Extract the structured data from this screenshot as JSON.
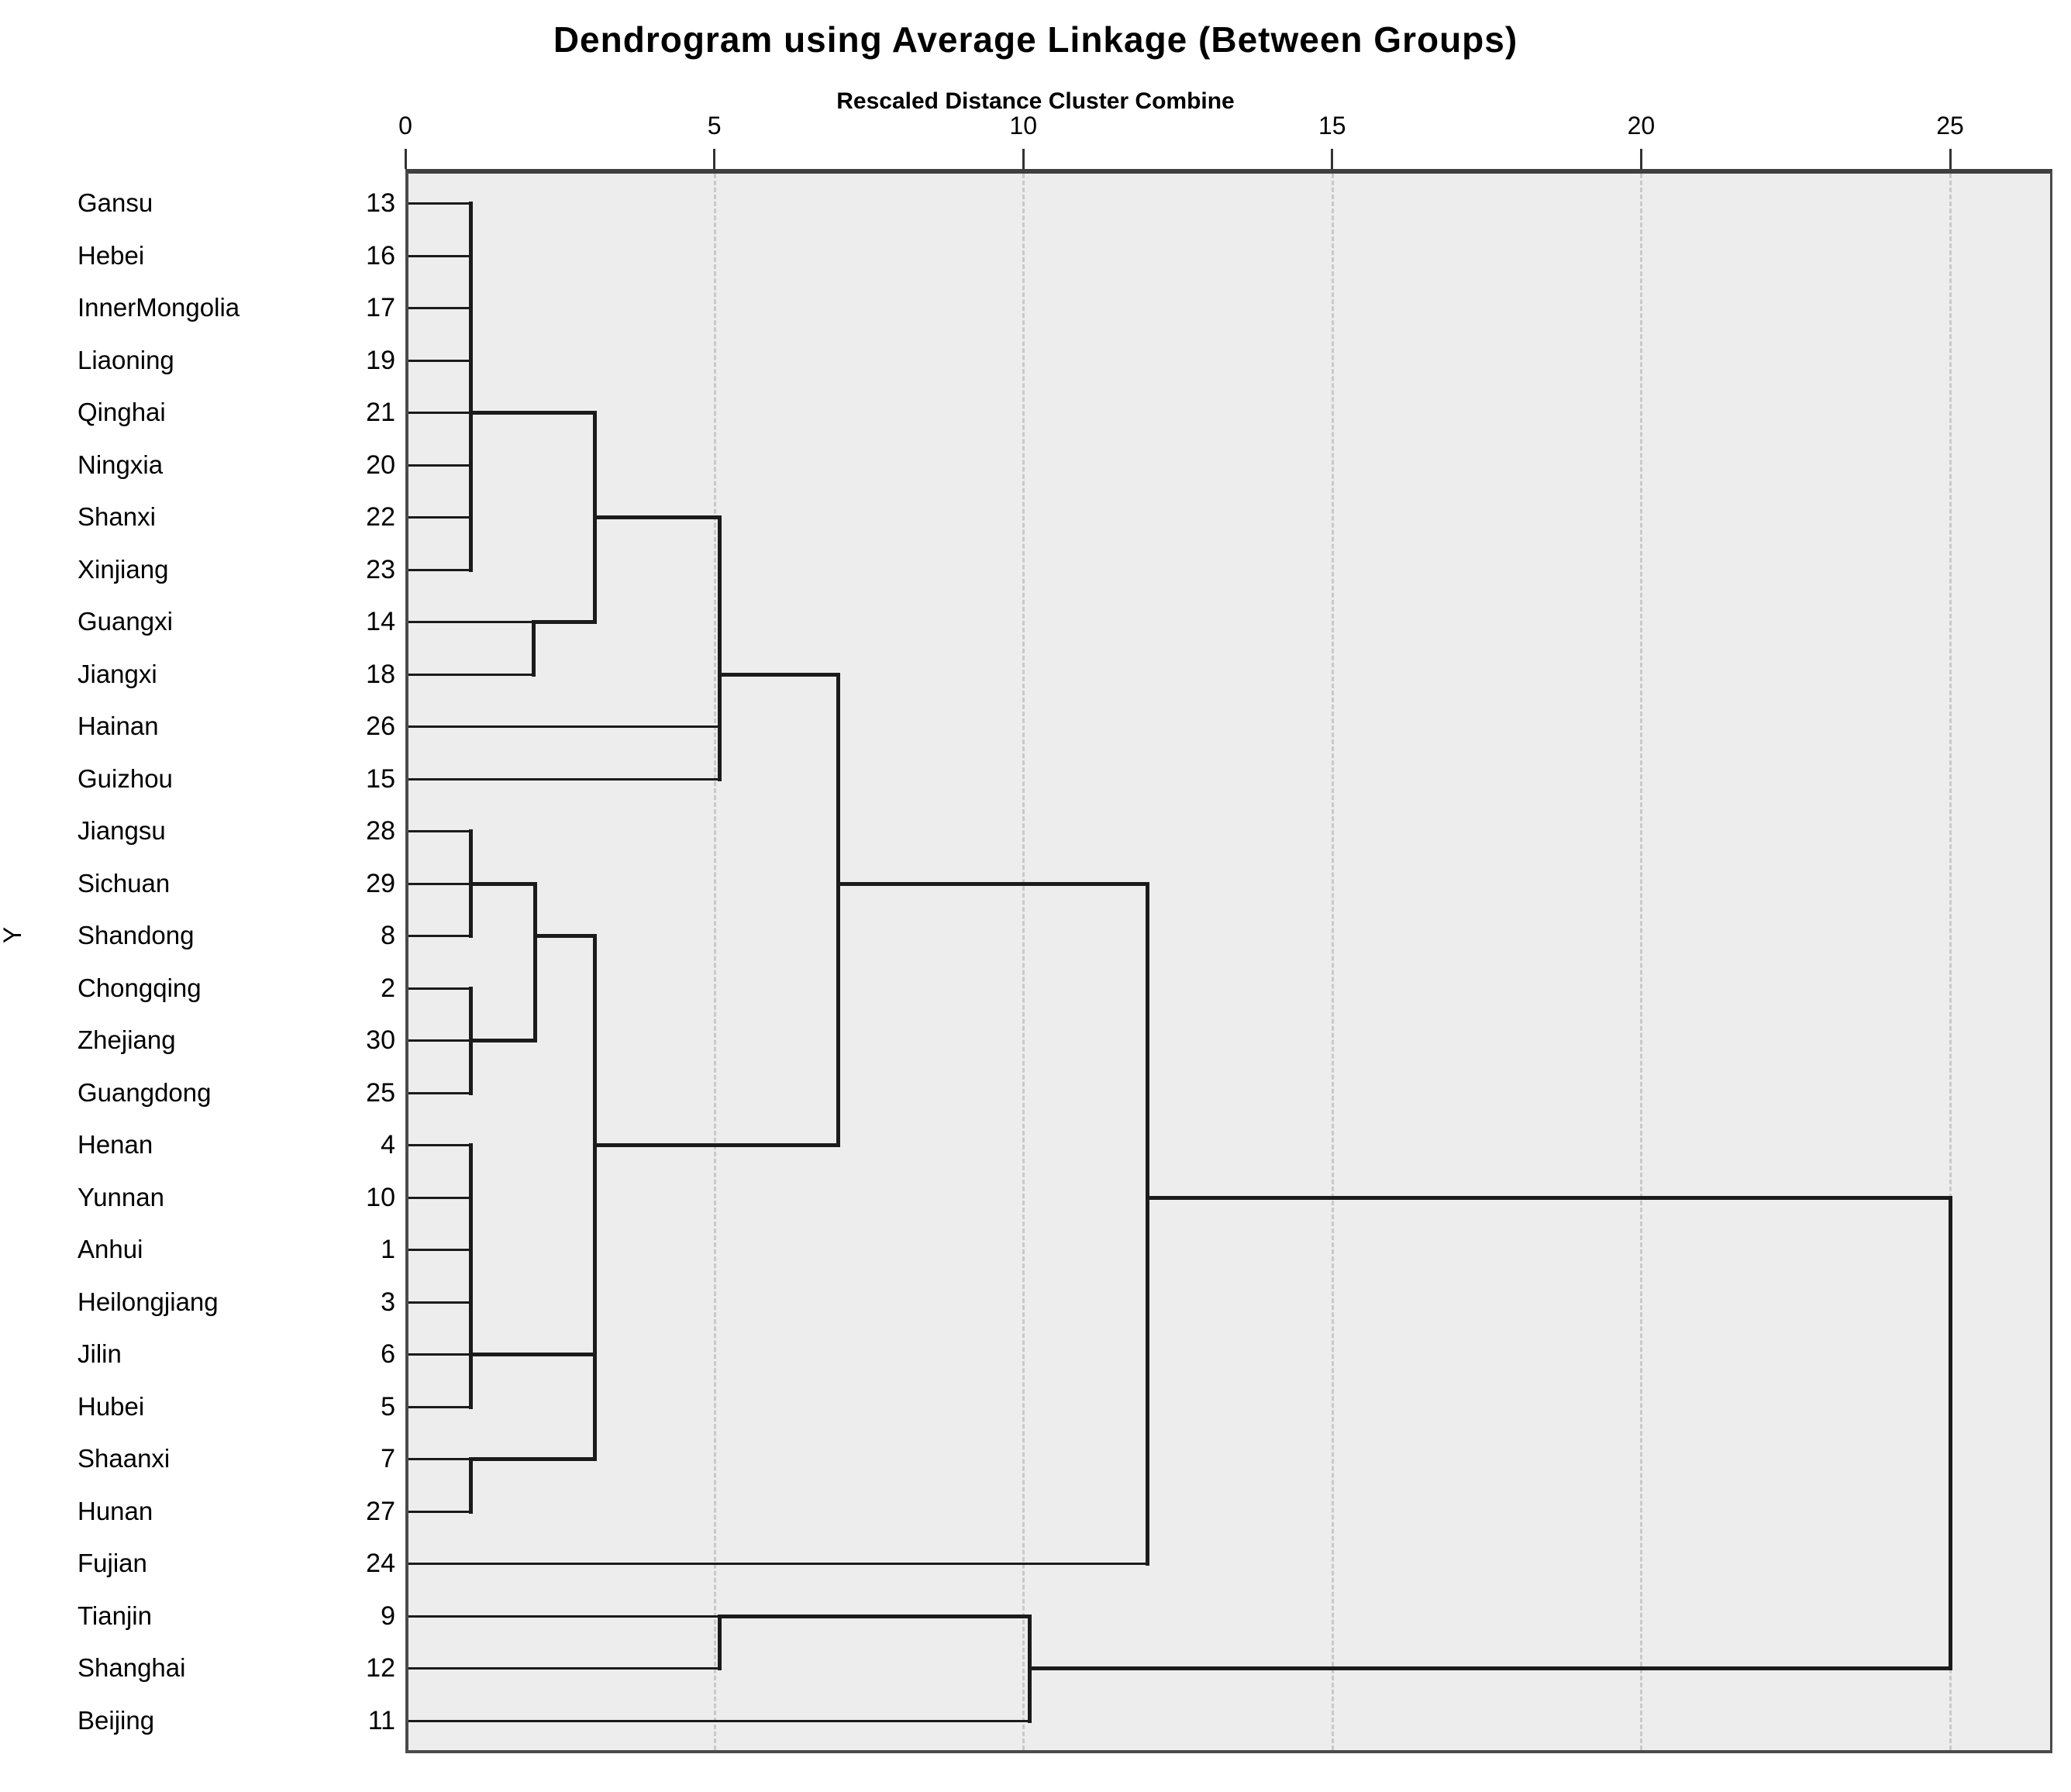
{
  "chart_data": {
    "type": "dendrogram",
    "title": "Dendrogram using Average Linkage (Between Groups)",
    "subtitle": "Rescaled Distance Cluster Combine",
    "y_label": "Y",
    "x_axis": {
      "min": 0,
      "max": 25,
      "ticks": [
        0,
        5,
        10,
        15,
        20,
        25
      ],
      "gridlines": [
        5,
        10,
        15,
        20,
        25
      ]
    },
    "colors": {
      "plot_background": "#ededed",
      "branch": "#1b1b1b",
      "gridline": "#c9c9c9",
      "frame": "#3f3f3f"
    },
    "leaves": [
      {
        "label": "Gansu",
        "case": "13",
        "end": 1.05
      },
      {
        "label": "Hebei",
        "case": "16",
        "end": 1.05
      },
      {
        "label": "InnerMongolia",
        "case": "17",
        "end": 1.05
      },
      {
        "label": "Liaoning",
        "case": "19",
        "end": 1.05
      },
      {
        "label": "Qinghai",
        "case": "21",
        "end": 1.05
      },
      {
        "label": "Ningxia",
        "case": "20",
        "end": 1.05
      },
      {
        "label": "Shanxi",
        "case": "22",
        "end": 1.05
      },
      {
        "label": "Xinjiang",
        "case": "23",
        "end": 1.05
      },
      {
        "label": "Guangxi",
        "case": "14",
        "end": 2.07
      },
      {
        "label": "Jiangxi",
        "case": "18",
        "end": 2.07
      },
      {
        "label": "Hainan",
        "case": "26",
        "end": 5.08
      },
      {
        "label": "Guizhou",
        "case": "15",
        "end": 5.08
      },
      {
        "label": "Jiangsu",
        "case": "28",
        "end": 1.05
      },
      {
        "label": "Sichuan",
        "case": "29",
        "end": 1.05
      },
      {
        "label": "Shandong",
        "case": "8",
        "end": 1.05
      },
      {
        "label": "Chongqing",
        "case": "2",
        "end": 1.05
      },
      {
        "label": "Zhejiang",
        "case": "30",
        "end": 1.05
      },
      {
        "label": "Guangdong",
        "case": "25",
        "end": 1.05
      },
      {
        "label": "Henan",
        "case": "4",
        "end": 1.05
      },
      {
        "label": "Yunnan",
        "case": "10",
        "end": 1.05
      },
      {
        "label": "Anhui",
        "case": "1",
        "end": 1.05
      },
      {
        "label": "Heilongjiang",
        "case": "3",
        "end": 1.05
      },
      {
        "label": "Jilin",
        "case": "6",
        "end": 1.05
      },
      {
        "label": "Hubei",
        "case": "5",
        "end": 1.05
      },
      {
        "label": "Shaanxi",
        "case": "7",
        "end": 1.05
      },
      {
        "label": "Hunan",
        "case": "27",
        "end": 1.05
      },
      {
        "label": "Fujian",
        "case": "24",
        "end": 12.0
      },
      {
        "label": "Tianjin",
        "case": "9",
        "end": 5.08
      },
      {
        "label": "Shanghai",
        "case": "12",
        "end": 5.08
      },
      {
        "label": "Beijing",
        "case": "11",
        "end": 10.1
      }
    ],
    "verticals": [
      {
        "u": 1.05,
        "from": 1,
        "to": 8
      },
      {
        "u": 2.07,
        "from": 9,
        "to": 10
      },
      {
        "u": 3.06,
        "from": 5,
        "to": 9
      },
      {
        "u": 5.08,
        "from": 7,
        "to": 12
      },
      {
        "u": 7.0,
        "from": 10,
        "to": 19
      },
      {
        "u": 1.05,
        "from": 13,
        "to": 15
      },
      {
        "u": 1.05,
        "from": 16,
        "to": 18
      },
      {
        "u": 2.09,
        "from": 14,
        "to": 17
      },
      {
        "u": 3.06,
        "from": 15,
        "to": 25
      },
      {
        "u": 1.05,
        "from": 19,
        "to": 24
      },
      {
        "u": 1.05,
        "from": 25,
        "to": 26
      },
      {
        "u": 12.0,
        "from": 14,
        "to": 27
      },
      {
        "u": 25.0,
        "from": 20,
        "to": 29
      },
      {
        "u": 5.08,
        "from": 28,
        "to": 29
      },
      {
        "u": 10.1,
        "from": 28,
        "to": 30
      }
    ],
    "connectors": [
      {
        "row": 5,
        "u1": 1.05,
        "u2": 3.06
      },
      {
        "row": 9,
        "u1": 2.07,
        "u2": 3.06
      },
      {
        "row": 7,
        "u1": 3.06,
        "u2": 5.08
      },
      {
        "row": 10,
        "u1": 5.08,
        "u2": 7.0
      },
      {
        "row": 14,
        "u1": 1.05,
        "u2": 2.09
      },
      {
        "row": 17,
        "u1": 1.05,
        "u2": 2.09
      },
      {
        "row": 15,
        "u1": 2.09,
        "u2": 3.06
      },
      {
        "row": 23,
        "u1": 1.05,
        "u2": 3.06
      },
      {
        "row": 25,
        "u1": 1.05,
        "u2": 3.06
      },
      {
        "row": 19,
        "u1": 3.06,
        "u2": 7.0
      },
      {
        "row": 14,
        "u1": 7.0,
        "u2": 12.0
      },
      {
        "row": 20,
        "u1": 12.0,
        "u2": 25.0
      },
      {
        "row": 28,
        "u1": 5.08,
        "u2": 10.1
      },
      {
        "row": 29,
        "u1": 10.1,
        "u2": 25.0
      }
    ]
  }
}
